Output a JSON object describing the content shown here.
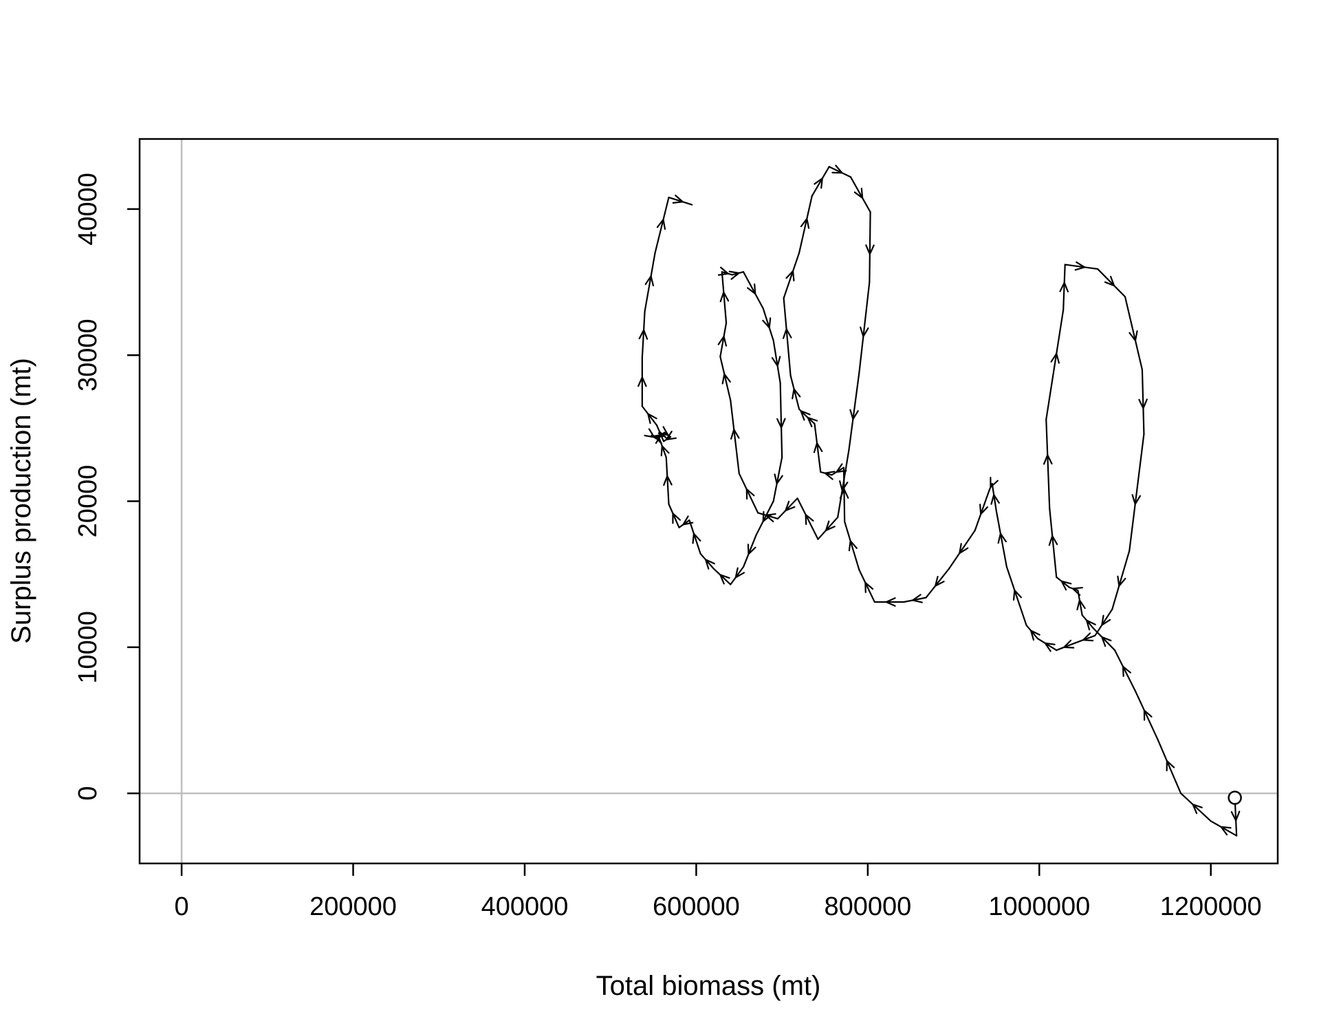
{
  "chart_data": {
    "type": "line",
    "title": "",
    "xlabel": "Total biomass (mt)",
    "ylabel": "Surplus production (mt)",
    "xlim": [
      -49000,
      1278000
    ],
    "ylim": [
      -4800,
      44800
    ],
    "x_ticks": [
      0,
      200000,
      400000,
      600000,
      800000,
      1000000,
      1200000
    ],
    "x_tick_labels": [
      "0",
      "200000",
      "400000",
      "600000",
      "800000",
      "1000000",
      "1200000"
    ],
    "y_ticks": [
      0,
      10000,
      20000,
      30000,
      40000
    ],
    "y_tick_labels": [
      "0",
      "10000",
      "20000",
      "30000",
      "40000"
    ],
    "reference_lines": {
      "x": 0,
      "y": 0,
      "color": "#bebebe"
    },
    "start_marker": "open-circle",
    "line_color": "#000000",
    "grid": false,
    "legend": "none",
    "trajectory": [
      [
        1228000,
        -300
      ],
      [
        1230000,
        -2900
      ],
      [
        1200000,
        -1900
      ],
      [
        1165000,
        0
      ],
      [
        1138000,
        3700
      ],
      [
        1112000,
        7000
      ],
      [
        1088000,
        9800
      ],
      [
        1063000,
        11300
      ],
      [
        1050000,
        12200
      ],
      [
        1045000,
        13900
      ],
      [
        1035000,
        14100
      ],
      [
        1020000,
        14800
      ],
      [
        1012000,
        19500
      ],
      [
        1008000,
        25600
      ],
      [
        1028000,
        33100
      ],
      [
        1030000,
        36200
      ],
      [
        1068000,
        35900
      ],
      [
        1100000,
        34000
      ],
      [
        1120000,
        29000
      ],
      [
        1122000,
        24600
      ],
      [
        1105000,
        16600
      ],
      [
        1085000,
        12600
      ],
      [
        1065000,
        10800
      ],
      [
        1042000,
        10300
      ],
      [
        1020000,
        9800
      ],
      [
        998000,
        10600
      ],
      [
        985000,
        11500
      ],
      [
        962000,
        15500
      ],
      [
        950000,
        19300
      ],
      [
        945000,
        21200
      ],
      [
        942000,
        20800
      ],
      [
        925000,
        18000
      ],
      [
        895000,
        15400
      ],
      [
        868000,
        13400
      ],
      [
        842000,
        13100
      ],
      [
        808000,
        13100
      ],
      [
        790000,
        15300
      ],
      [
        773000,
        18600
      ],
      [
        772000,
        22300
      ],
      [
        758000,
        21800
      ],
      [
        745000,
        22000
      ],
      [
        738000,
        25300
      ],
      [
        725000,
        26000
      ],
      [
        720000,
        26300
      ],
      [
        710000,
        28600
      ],
      [
        702000,
        33900
      ],
      [
        720000,
        37000
      ],
      [
        735000,
        40900
      ],
      [
        755000,
        42900
      ],
      [
        780000,
        42200
      ],
      [
        803000,
        39800
      ],
      [
        802000,
        35000
      ],
      [
        790000,
        28800
      ],
      [
        778000,
        23500
      ],
      [
        765000,
        18900
      ],
      [
        742000,
        17400
      ],
      [
        718000,
        20200
      ],
      [
        695000,
        18800
      ],
      [
        672000,
        19200
      ],
      [
        650000,
        21900
      ],
      [
        640000,
        26900
      ],
      [
        628000,
        29900
      ],
      [
        635000,
        32200
      ],
      [
        630000,
        35700
      ],
      [
        642000,
        35500
      ],
      [
        655000,
        35700
      ],
      [
        678000,
        33200
      ],
      [
        690000,
        31000
      ],
      [
        698000,
        28100
      ],
      [
        700000,
        23000
      ],
      [
        690000,
        20000
      ],
      [
        670000,
        17700
      ],
      [
        655000,
        15500
      ],
      [
        640000,
        14300
      ],
      [
        620000,
        15400
      ],
      [
        605000,
        16400
      ],
      [
        592000,
        18700
      ],
      [
        580000,
        18200
      ],
      [
        568000,
        19800
      ],
      [
        565000,
        23000
      ],
      [
        557000,
        24300
      ],
      [
        548000,
        24500
      ],
      [
        553000,
        24300
      ],
      [
        563000,
        24700
      ],
      [
        570000,
        24400
      ],
      [
        562000,
        24100
      ],
      [
        554000,
        25200
      ],
      [
        537000,
        26500
      ],
      [
        537000,
        29800
      ],
      [
        540000,
        33000
      ],
      [
        552000,
        37000
      ],
      [
        568000,
        40800
      ],
      [
        595000,
        40300
      ]
    ]
  }
}
